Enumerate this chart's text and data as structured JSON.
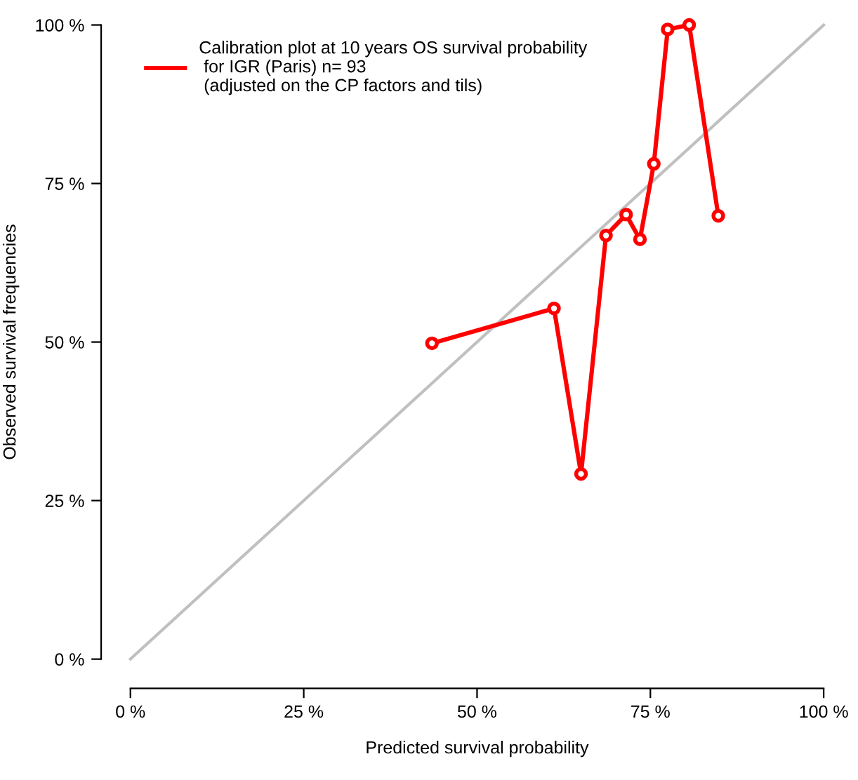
{
  "chart_data": {
    "type": "line",
    "xlabel": "Predicted survival probability",
    "ylabel": "Observed survival frequencies",
    "xlim": [
      0,
      100
    ],
    "ylim": [
      0,
      100
    ],
    "xticks": [
      {
        "value": 0,
        "label": "0 %"
      },
      {
        "value": 25,
        "label": "25 %"
      },
      {
        "value": 50,
        "label": "50 %"
      },
      {
        "value": 75,
        "label": "75 %"
      },
      {
        "value": 100,
        "label": "100 %"
      }
    ],
    "yticks": [
      {
        "value": 0,
        "label": "0 %"
      },
      {
        "value": 25,
        "label": "25 %"
      },
      {
        "value": 50,
        "label": "50 %"
      },
      {
        "value": 75,
        "label": "75 %"
      },
      {
        "value": 100,
        "label": "100 %"
      }
    ],
    "grid": false,
    "legend": "top left",
    "series": [
      {
        "color": "#c0c0c0",
        "marker": "none",
        "x": [
          0,
          100
        ],
        "values": [
          0,
          100
        ]
      },
      {
        "name": "Calibration plot at 10 years OS survival probability\n for IGR (Paris) n= 93\n (adjusted on the CP factors and tils)",
        "color": "#ff0000",
        "marker": "circle",
        "x": [
          43.5,
          61.1,
          65.0,
          68.6,
          71.5,
          73.5,
          75.5,
          77.5,
          80.6,
          84.8
        ],
        "values": [
          49.8,
          55.3,
          29.2,
          66.8,
          70.1,
          66.2,
          78.1,
          99.3,
          100,
          69.9
        ]
      }
    ]
  }
}
